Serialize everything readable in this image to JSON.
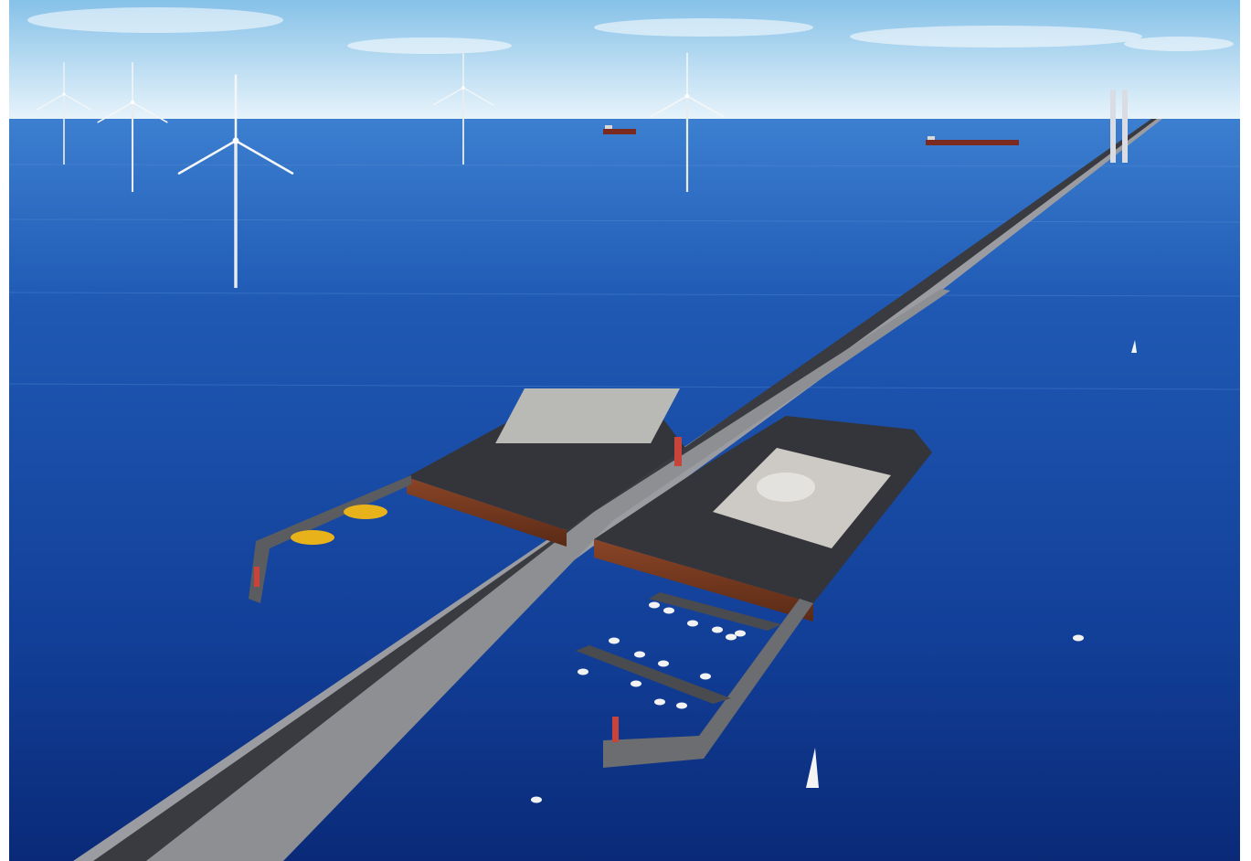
{
  "scene": {
    "type": "aerial-rendering",
    "colors": {
      "sky_top": "#8ec7ea",
      "sky_horizon": "#e6f3fb",
      "sea_far": "#2f6fc4",
      "sea_near": "#0b2a78",
      "bridge": "#8d8f95",
      "road": "#3a3b3f",
      "pier": "#3b3c40",
      "pier_wall": "#7a3a22",
      "breakwater": "#6b6d70",
      "building_roof": "#c9c6c2",
      "yellow_boats": "#e8b21a"
    },
    "counts": {
      "wind_turbines": 5,
      "ships_far": 2,
      "marina_boats": 16
    },
    "icons": [
      "wind-turbine-icon",
      "ship-icon",
      "sailboat-icon",
      "lighthouse-icon",
      "motorboat-icon"
    ]
  }
}
